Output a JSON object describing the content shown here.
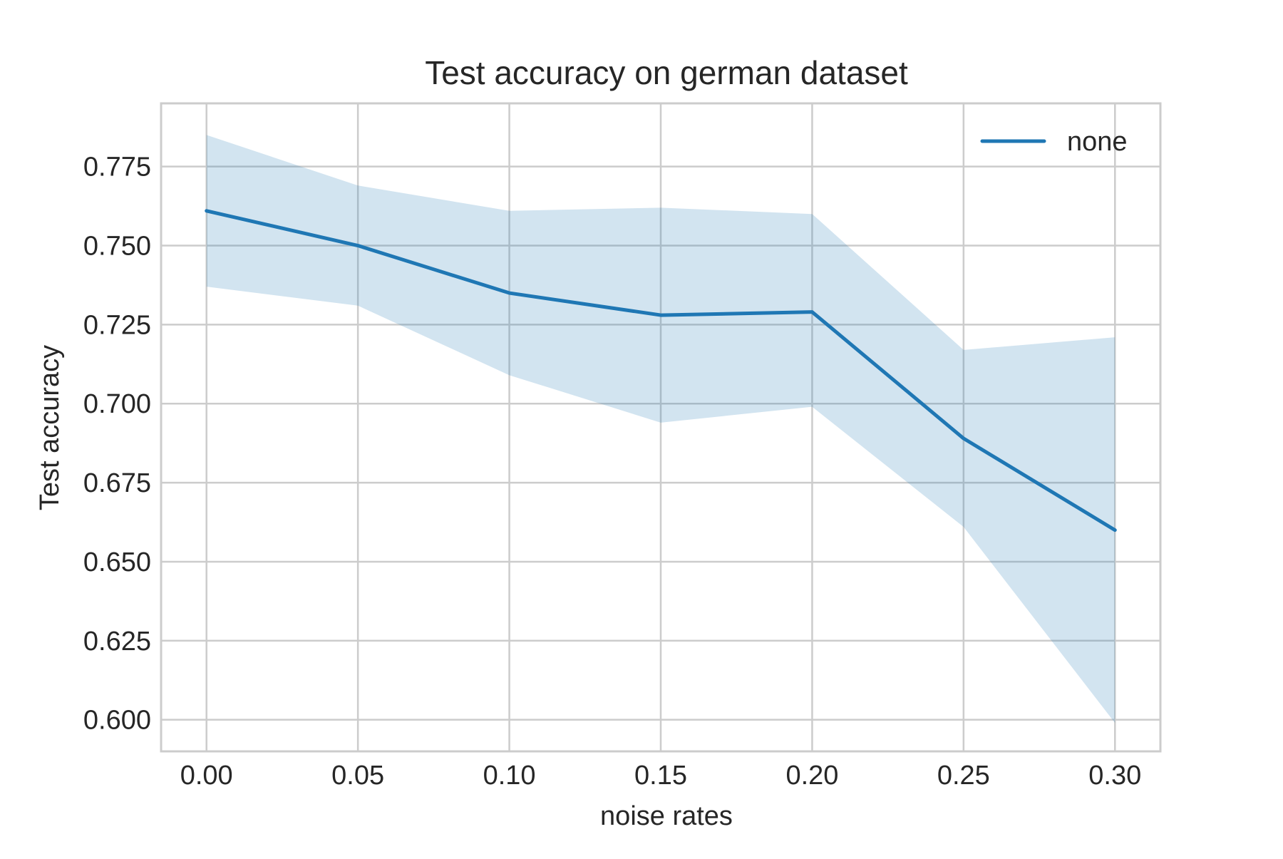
{
  "chart_data": {
    "type": "line",
    "title": "Test accuracy on german dataset",
    "xlabel": "noise rates",
    "ylabel": "Test accuracy",
    "x": [
      0.0,
      0.05,
      0.1,
      0.15,
      0.2,
      0.25,
      0.3
    ],
    "x_tick_labels": [
      "0.00",
      "0.05",
      "0.10",
      "0.15",
      "0.20",
      "0.25",
      "0.30"
    ],
    "y_ticks": [
      0.6,
      0.625,
      0.65,
      0.675,
      0.7,
      0.725,
      0.75,
      0.775
    ],
    "y_tick_labels": [
      "0.600",
      "0.625",
      "0.650",
      "0.675",
      "0.700",
      "0.725",
      "0.750",
      "0.775"
    ],
    "xlim": [
      -0.015,
      0.315
    ],
    "ylim": [
      0.59,
      0.795
    ],
    "grid": true,
    "legend_position": "top-right",
    "series": [
      {
        "name": "none",
        "color": "#1f77b4",
        "values": [
          0.761,
          0.75,
          0.735,
          0.728,
          0.729,
          0.689,
          0.66
        ],
        "band_upper": [
          0.785,
          0.769,
          0.761,
          0.762,
          0.76,
          0.717,
          0.721
        ],
        "band_lower": [
          0.737,
          0.731,
          0.709,
          0.694,
          0.699,
          0.661,
          0.599
        ],
        "band_color": "#1f77b4"
      }
    ]
  }
}
